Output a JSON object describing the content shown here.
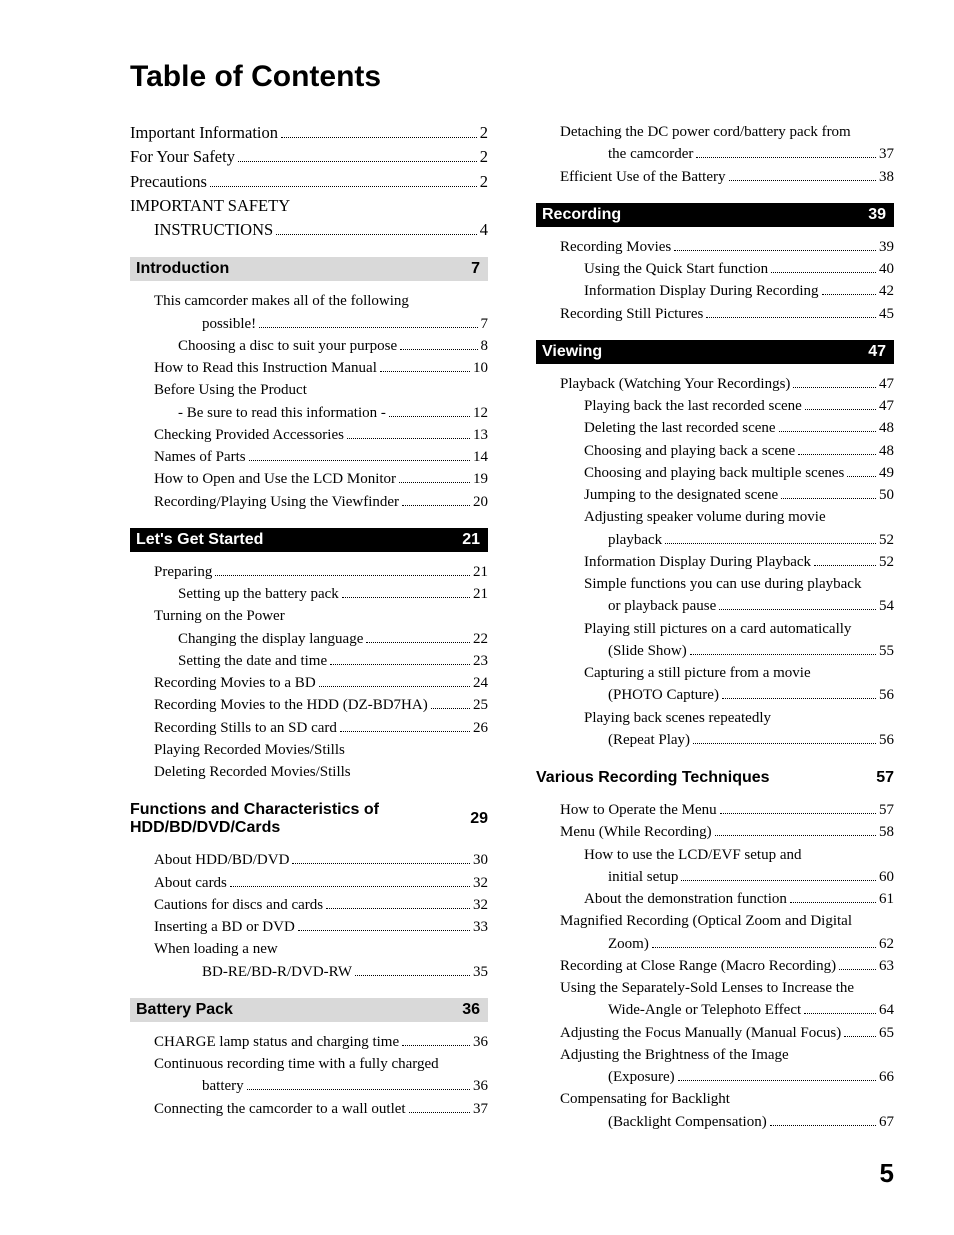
{
  "title": "Table of Contents",
  "page_number": "5",
  "styles": {
    "head_black_bg": "#000000",
    "head_black_fg": "#ffffff",
    "head_grey_bg": "#d9d9d9",
    "head_grey_fg": "#000000",
    "body_font": "Times New Roman",
    "head_font": "Arial",
    "body_size_pt": 12,
    "head_size_pt": 12,
    "title_size_pt": 22
  },
  "left": {
    "pre_items": [
      {
        "label": "Important Information",
        "page": "2",
        "indent": 0
      },
      {
        "label": "For Your Safety",
        "page": "2",
        "indent": 0
      },
      {
        "label": "Precautions",
        "page": "2",
        "indent": 0
      },
      {
        "label": "IMPORTANT SAFETY",
        "indent": 0,
        "nopage": true
      },
      {
        "label": "INSTRUCTIONS",
        "page": "4",
        "indent": 1
      }
    ],
    "sections": [
      {
        "head_style": "grey",
        "title": "Introduction",
        "page": "7",
        "items": [
          {
            "label": "This camcorder makes all of the following",
            "indent": 0,
            "nopage": true
          },
          {
            "label": "possible!",
            "page": "7",
            "indent": 2
          },
          {
            "label": "Choosing a disc to suit your purpose",
            "page": "8",
            "indent": 1
          },
          {
            "label": "How to Read this Instruction Manual",
            "page": "10",
            "indent": 0
          },
          {
            "label": "Before Using the Product",
            "indent": 0,
            "nopage": true
          },
          {
            "label": "- Be sure to read this information -",
            "page": "12",
            "indent": 1
          },
          {
            "label": "Checking Provided Accessories",
            "page": "13",
            "indent": 0
          },
          {
            "label": "Names of Parts",
            "page": "14",
            "indent": 0
          },
          {
            "label": "How to Open and Use the LCD Monitor",
            "page": "19",
            "indent": 0
          },
          {
            "label": "Recording/Playing Using the Viewfinder",
            "page": "20",
            "indent": 0
          }
        ]
      },
      {
        "head_style": "black",
        "title": "Let's Get Started",
        "page": "21",
        "items": [
          {
            "label": "Preparing",
            "page": "21",
            "indent": 0
          },
          {
            "label": "Setting up the battery pack",
            "page": "21",
            "indent": 1
          },
          {
            "label": "Turning on the Power",
            "indent": 0,
            "nopage": true
          },
          {
            "label": "Changing the display language",
            "page": "22",
            "indent": 1
          },
          {
            "label": "Setting the date and time",
            "page": "23",
            "indent": 1
          },
          {
            "label": "Recording Movies to a BD",
            "page": "24",
            "indent": 0
          },
          {
            "label": "Recording Movies to the HDD (DZ-BD7HA)",
            "page": "25",
            "indent": 0
          },
          {
            "label": "Recording Stills to an SD card",
            "page": "26",
            "indent": 0
          },
          {
            "label": "Playing Recorded Movies/Stills",
            "indent": 0,
            "nopage": true
          },
          {
            "label": "Deleting Recorded Movies/Stills",
            "indent": 0,
            "nopage": true
          }
        ]
      },
      {
        "head_style": "plain",
        "title": "Functions and Characteristics of HDD/BD/DVD/Cards",
        "page": "29",
        "items": [
          {
            "label": "About HDD/BD/DVD",
            "page": "30",
            "indent": 0
          },
          {
            "label": "About cards",
            "page": "32",
            "indent": 0
          },
          {
            "label": "Cautions for discs and cards",
            "page": "32",
            "indent": 0
          },
          {
            "label": "Inserting a BD or DVD",
            "page": "33",
            "indent": 0
          },
          {
            "label": "When loading a new",
            "indent": 0,
            "nopage": true
          },
          {
            "label": "BD-RE/BD-R/DVD-RW",
            "page": "35",
            "indent": 2
          }
        ]
      },
      {
        "head_style": "grey",
        "title": "Battery Pack",
        "page": "36",
        "items": [
          {
            "label": "CHARGE lamp status and charging time",
            "page": "36",
            "indent": 0
          },
          {
            "label": "Continuous recording time with a fully charged",
            "indent": 0,
            "nopage": true
          },
          {
            "label": "battery",
            "page": "36",
            "indent": 2
          },
          {
            "label": "Connecting the camcorder to a wall outlet",
            "page": "37",
            "indent": 0
          }
        ]
      }
    ]
  },
  "right": {
    "pre_items": [
      {
        "label": "Detaching the DC power cord/battery pack from",
        "indent": 0,
        "nopage": true
      },
      {
        "label": "the camcorder",
        "page": "37",
        "indent": 2
      },
      {
        "label": "Efficient Use of the Battery",
        "page": "38",
        "indent": 0
      }
    ],
    "sections": [
      {
        "head_style": "black",
        "title": "Recording",
        "page": "39",
        "items": [
          {
            "label": "Recording Movies",
            "page": "39",
            "indent": 0
          },
          {
            "label": "Using the Quick Start function",
            "page": "40",
            "indent": 1
          },
          {
            "label": "Information Display During Recording",
            "page": "42",
            "indent": 1
          },
          {
            "label": "Recording Still Pictures",
            "page": "45",
            "indent": 0
          }
        ]
      },
      {
        "head_style": "black",
        "title": "Viewing",
        "page": "47",
        "items": [
          {
            "label": "Playback (Watching Your Recordings)",
            "page": "47",
            "indent": 0
          },
          {
            "label": "Playing back the last recorded scene",
            "page": "47",
            "indent": 1
          },
          {
            "label": "Deleting the last recorded scene",
            "page": "48",
            "indent": 1
          },
          {
            "label": "Choosing and playing back a scene",
            "page": "48",
            "indent": 1
          },
          {
            "label": "Choosing and playing back multiple scenes",
            "page": "49",
            "indent": 1
          },
          {
            "label": "Jumping to the designated scene",
            "page": "50",
            "indent": 1
          },
          {
            "label": "Adjusting speaker volume during movie",
            "indent": 1,
            "nopage": true
          },
          {
            "label": "playback",
            "page": "52",
            "indent": 2
          },
          {
            "label": "Information Display During Playback",
            "page": "52",
            "indent": 1
          },
          {
            "label": "Simple functions you can use during playback",
            "indent": 1,
            "nopage": true
          },
          {
            "label": "or playback pause",
            "page": "54",
            "indent": 2
          },
          {
            "label": "Playing still pictures on a card automatically",
            "indent": 1,
            "nopage": true
          },
          {
            "label": "(Slide Show)",
            "page": "55",
            "indent": 2
          },
          {
            "label": "Capturing a still picture from a movie",
            "indent": 1,
            "nopage": true
          },
          {
            "label": "(PHOTO Capture)",
            "page": "56",
            "indent": 2
          },
          {
            "label": "Playing back scenes repeatedly",
            "indent": 1,
            "nopage": true
          },
          {
            "label": "(Repeat Play)",
            "page": "56",
            "indent": 2
          }
        ]
      },
      {
        "head_style": "plain",
        "title": "Various Recording Techniques",
        "page": "57",
        "items": [
          {
            "label": "How to Operate the Menu",
            "page": "57",
            "indent": 0
          },
          {
            "label": "Menu (While Recording)",
            "page": "58",
            "indent": 0
          },
          {
            "label": "How to use the LCD/EVF setup and",
            "indent": 1,
            "nopage": true
          },
          {
            "label": "initial setup",
            "page": "60",
            "indent": 2
          },
          {
            "label": "About the demonstration function",
            "page": "61",
            "indent": 1
          },
          {
            "label": "Magnified Recording (Optical Zoom and Digital",
            "indent": 0,
            "nopage": true
          },
          {
            "label": "Zoom)",
            "page": "62",
            "indent": 2
          },
          {
            "label": "Recording at Close Range (Macro Recording)",
            "page": "63",
            "indent": 0
          },
          {
            "label": "Using the Separately-Sold Lenses to Increase the",
            "indent": 0,
            "nopage": true
          },
          {
            "label": "Wide-Angle or Telephoto Effect",
            "page": "64",
            "indent": 2
          },
          {
            "label": "Adjusting the Focus Manually (Manual Focus)",
            "page": "65",
            "indent": 0
          },
          {
            "label": "Adjusting the Brightness of the Image",
            "indent": 0,
            "nopage": true
          },
          {
            "label": "(Exposure)",
            "page": "66",
            "indent": 2
          },
          {
            "label": "Compensating for Backlight",
            "indent": 0,
            "nopage": true
          },
          {
            "label": "(Backlight Compensation)",
            "page": "67",
            "indent": 2
          }
        ]
      }
    ]
  }
}
